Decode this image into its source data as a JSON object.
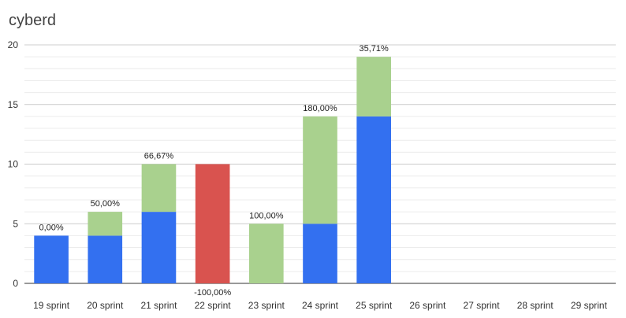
{
  "chart_data": {
    "type": "bar",
    "stacked": true,
    "title": "cyberd",
    "xlabel": "",
    "ylabel": "",
    "ylim": [
      0,
      20
    ],
    "yticks": [
      "0",
      "5",
      "10",
      "15",
      "20"
    ],
    "grid": true,
    "legend": "none",
    "categories": [
      "19 sprint",
      "20 sprint",
      "21 sprint",
      "22 sprint",
      "23 sprint",
      "24 sprint",
      "25 sprint",
      "26 sprint",
      "27 sprint",
      "28 sprint",
      "29 sprint"
    ],
    "series": [
      {
        "color": "#3370f0",
        "values": [
          4,
          4,
          6,
          0,
          0,
          5,
          14,
          0,
          0,
          0,
          0
        ]
      },
      {
        "color": "#a9d18e",
        "values": [
          0,
          2,
          4,
          0,
          5,
          9,
          5,
          0,
          0,
          0,
          0
        ]
      },
      {
        "color": "#d9534f",
        "values": [
          0,
          0,
          0,
          10,
          0,
          0,
          0,
          0,
          0,
          0,
          0
        ]
      }
    ],
    "data_labels": [
      "0,00%",
      "50,00%",
      "66,67%",
      "-100,00%",
      "100,00%",
      "180,00%",
      "35,71%",
      "",
      "",
      "",
      ""
    ],
    "negative_label_index": 3
  }
}
